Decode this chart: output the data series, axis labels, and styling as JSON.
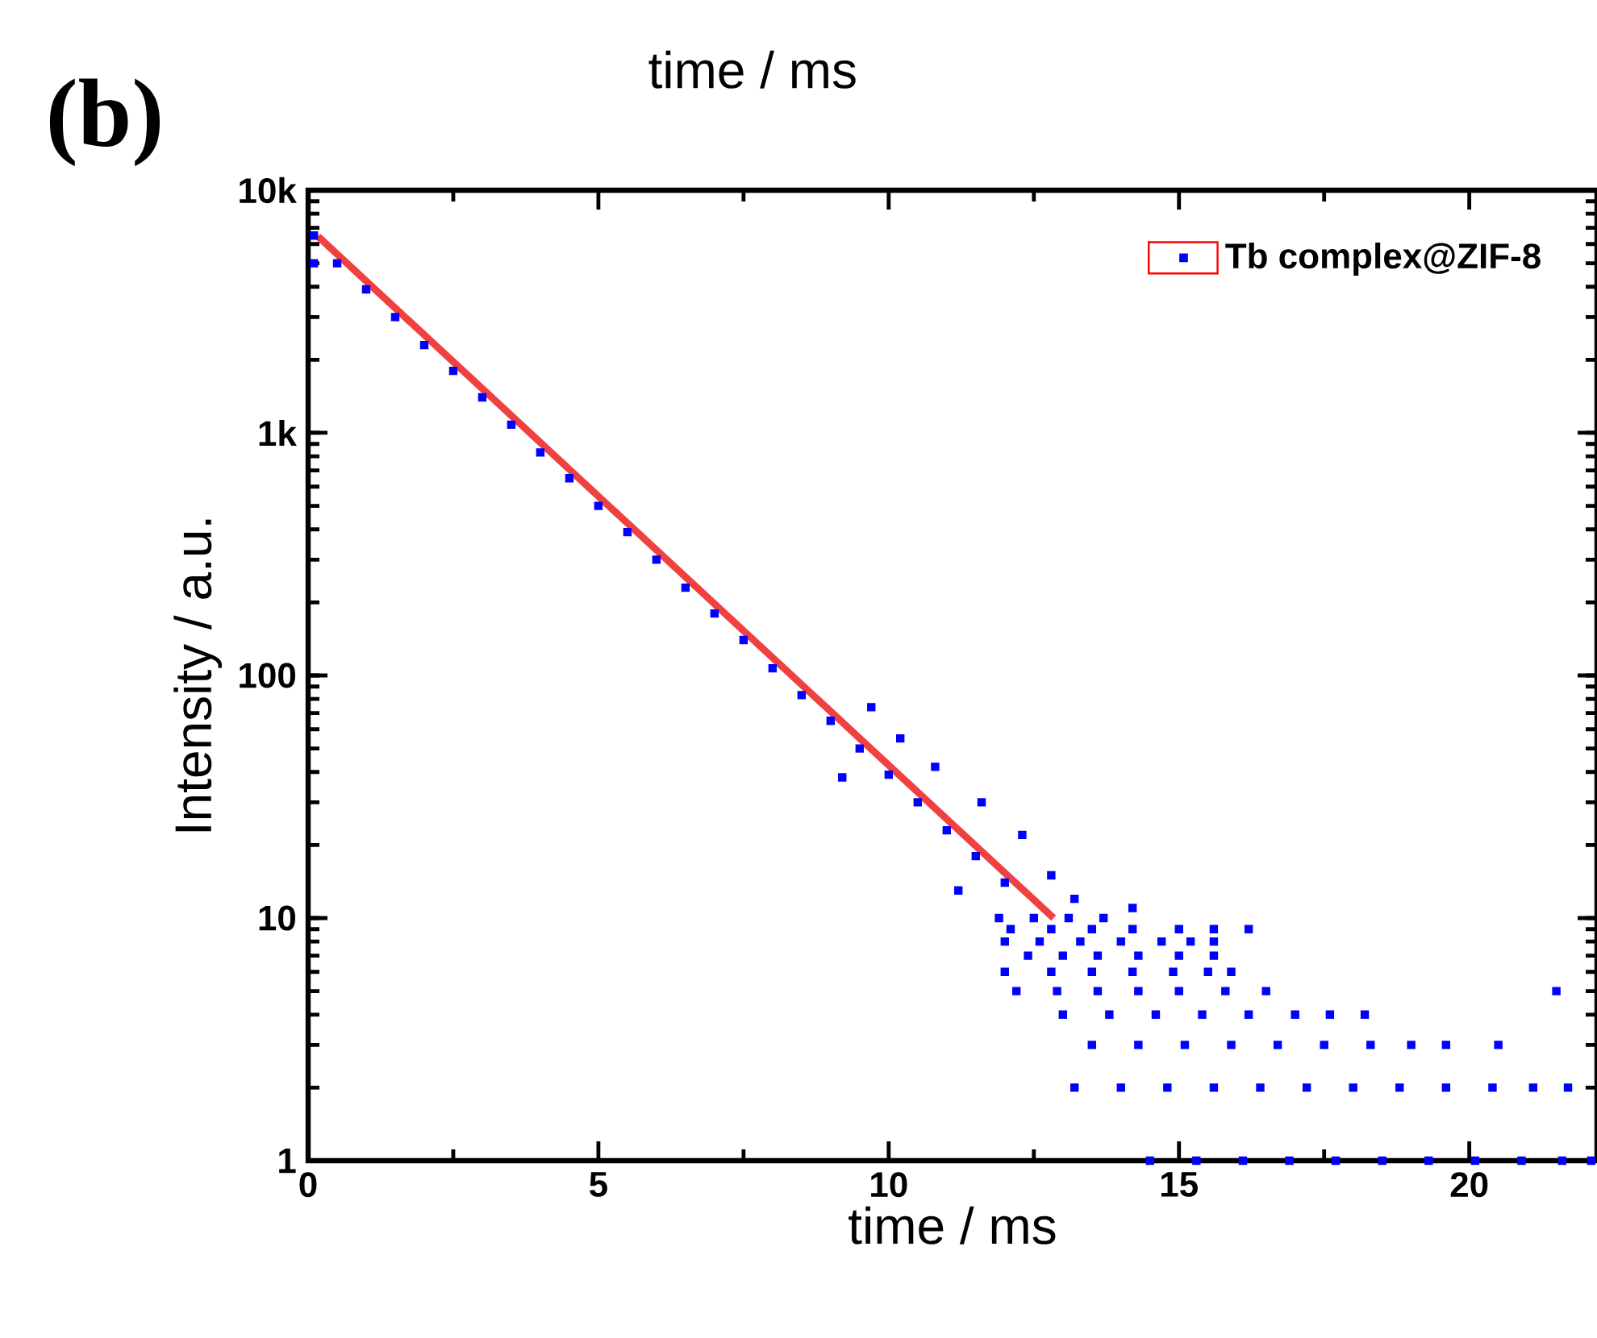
{
  "chart_data": {
    "type": "scatter",
    "title": "time / ms",
    "xlabel": "time / ms",
    "ylabel": "Intensity / a.u.",
    "annotations": [
      "(b)"
    ],
    "xlim": [
      0,
      22.2
    ],
    "ylim": [
      1,
      10000
    ],
    "xticks": [
      0,
      5,
      10,
      15,
      20
    ],
    "yticks": [
      1,
      10,
      100,
      {
        "value": 1000,
        "label": "1k"
      },
      {
        "value": 10000,
        "label": "10k"
      }
    ],
    "log": "y",
    "legend": "top right",
    "series": [
      {
        "name": "Tb complex@ZIF-8",
        "marker": "square",
        "color": "#0000ff",
        "x": [
          0.1,
          0.1,
          0.5,
          1,
          1.5,
          2,
          2.5,
          3,
          3.5,
          4,
          4.5,
          5,
          5.5,
          6,
          6.5,
          7,
          7.5,
          8,
          8.5,
          9,
          9.5,
          10,
          10.5,
          11,
          11.5,
          12,
          9.7,
          9.2,
          10.2,
          10.8,
          11.2,
          11.6,
          12.3,
          12.8,
          13.2,
          14.2,
          11.9,
          12.5,
          13.1,
          13.7,
          12.1,
          12.8,
          13.5,
          14.2,
          15.0,
          15.6,
          16.2,
          12.0,
          12.6,
          13.3,
          14.0,
          14.7,
          15.2,
          15.6,
          12.4,
          13.0,
          13.6,
          14.3,
          15.0,
          15.6,
          12.0,
          12.8,
          13.5,
          14.2,
          14.9,
          15.5,
          15.9,
          12.2,
          12.9,
          13.6,
          14.3,
          15.0,
          15.8,
          16.5,
          21.5,
          13.0,
          13.8,
          14.6,
          15.4,
          16.2,
          17.0,
          17.6,
          18.2,
          13.5,
          14.3,
          15.1,
          15.9,
          16.7,
          17.5,
          18.3,
          19.0,
          19.6,
          20.5,
          13.2,
          14.0,
          14.8,
          15.6,
          16.4,
          17.2,
          18.0,
          18.8,
          19.6,
          20.4,
          21.1,
          21.7,
          14.5,
          15.3,
          16.1,
          16.9,
          17.7,
          18.5,
          19.3,
          20.1,
          20.9,
          21.6,
          22.1
        ],
        "values": [
          6500,
          5000,
          5000,
          3900,
          3000,
          2300,
          1800,
          1400,
          1080,
          830,
          650,
          500,
          390,
          300,
          230,
          180,
          140,
          107,
          83,
          65,
          50,
          39,
          30,
          23,
          18,
          14,
          74,
          38,
          55,
          42,
          13,
          30,
          22,
          15,
          12,
          11,
          10,
          10,
          10,
          10,
          9,
          9,
          9,
          9,
          9,
          9,
          9,
          8,
          8,
          8,
          8,
          8,
          8,
          8,
          7,
          7,
          7,
          7,
          7,
          7,
          6,
          6,
          6,
          6,
          6,
          6,
          6,
          5,
          5,
          5,
          5,
          5,
          5,
          5,
          5,
          4,
          4,
          4,
          4,
          4,
          4,
          4,
          4,
          3,
          3,
          3,
          3,
          3,
          3,
          3,
          3,
          3,
          3,
          2,
          2,
          2,
          2,
          2,
          2,
          2,
          2,
          2,
          2,
          2,
          2,
          1,
          1,
          1,
          1,
          1,
          1,
          1,
          1,
          1,
          1,
          1
        ]
      },
      {
        "type": "line",
        "marker": "none",
        "color": "#f04040",
        "line_style": "solid",
        "x": [
          0.17,
          12.84
        ],
        "values": [
          6450,
          10
        ]
      }
    ]
  }
}
